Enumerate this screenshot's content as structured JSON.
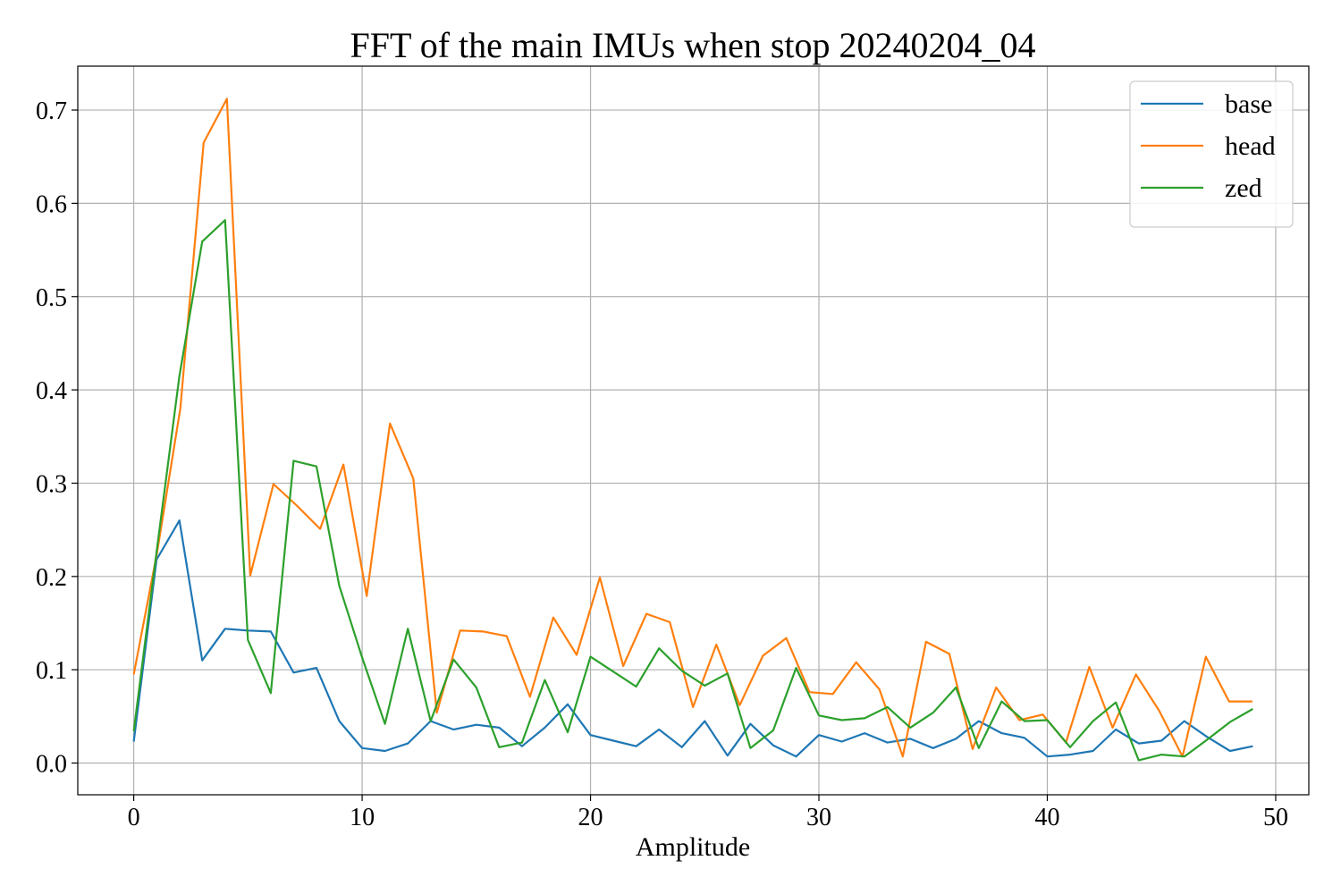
{
  "chart_data": {
    "type": "line",
    "title": "FFT of the main IMUs when stop 20240204_04",
    "xlabel": "Amplitude",
    "ylabel": "",
    "xlim": [
      -2.45,
      51.45
    ],
    "ylim": [
      -0.034,
      0.747
    ],
    "x_ticks": [
      0,
      10,
      20,
      30,
      40,
      50
    ],
    "y_ticks": [
      0.0,
      0.1,
      0.2,
      0.3,
      0.4,
      0.5,
      0.6,
      0.7
    ],
    "y_tick_labels": [
      "0.0",
      "0.1",
      "0.2",
      "0.3",
      "0.4",
      "0.5",
      "0.6",
      "0.7"
    ],
    "grid": true,
    "legend_position": "top-right",
    "series": [
      {
        "name": "base",
        "color": "#1f77b4",
        "x": [
          0,
          1,
          2,
          3,
          4,
          5,
          6,
          7,
          8,
          9,
          10,
          11,
          12,
          13,
          14,
          15,
          16,
          17,
          18,
          19,
          20,
          21,
          22,
          23,
          24,
          25,
          26,
          27,
          28,
          29,
          30,
          31,
          32,
          33,
          34,
          35,
          36,
          37,
          38,
          39,
          40,
          41,
          42,
          43,
          44,
          45,
          46,
          47,
          48,
          49
        ],
        "y": [
          0.023,
          0.218,
          0.26,
          0.11,
          0.144,
          0.142,
          0.141,
          0.097,
          0.102,
          0.045,
          0.016,
          0.013,
          0.021,
          0.045,
          0.036,
          0.041,
          0.038,
          0.018,
          0.038,
          0.063,
          0.03,
          0.024,
          0.018,
          0.036,
          0.017,
          0.045,
          0.008,
          0.042,
          0.019,
          0.007,
          0.03,
          0.023,
          0.032,
          0.022,
          0.026,
          0.016,
          0.026,
          0.045,
          0.032,
          0.027,
          0.007,
          0.009,
          0.013,
          0.036,
          0.021,
          0.024,
          0.045,
          0.028,
          0.013,
          0.018
        ]
      },
      {
        "name": "head",
        "color": "#ff7f0e",
        "x": [
          0,
          1.02,
          2.04,
          3.06,
          4.08,
          5.1,
          6.12,
          7.14,
          8.16,
          9.18,
          10.2,
          11.22,
          12.24,
          13.27,
          14.29,
          15.31,
          16.33,
          17.35,
          18.37,
          19.39,
          20.41,
          21.43,
          22.45,
          23.47,
          24.49,
          25.51,
          26.53,
          27.55,
          28.57,
          29.59,
          30.61,
          31.63,
          32.65,
          33.67,
          34.69,
          35.71,
          36.73,
          37.76,
          38.78,
          39.8,
          40.82,
          41.84,
          42.86,
          43.88,
          44.9,
          45.92,
          46.94,
          47.96,
          48.98
        ],
        "y": [
          0.095,
          0.225,
          0.38,
          0.665,
          0.712,
          0.201,
          0.299,
          0.276,
          0.251,
          0.32,
          0.179,
          0.364,
          0.305,
          0.054,
          0.142,
          0.141,
          0.136,
          0.071,
          0.156,
          0.116,
          0.199,
          0.104,
          0.16,
          0.151,
          0.06,
          0.127,
          0.062,
          0.115,
          0.134,
          0.076,
          0.074,
          0.108,
          0.079,
          0.007,
          0.13,
          0.117,
          0.015,
          0.081,
          0.046,
          0.052,
          0.022,
          0.103,
          0.038,
          0.095,
          0.056,
          0.007,
          0.114,
          0.066,
          0.066
        ]
      },
      {
        "name": "zed",
        "color": "#2ca02c",
        "x": [
          0,
          1,
          2,
          3,
          4,
          5,
          6,
          7,
          8,
          9,
          10,
          11,
          12,
          13,
          14,
          15,
          16,
          17,
          18,
          19,
          20,
          21,
          22,
          23,
          24,
          25,
          26,
          27,
          28,
          29,
          30,
          31,
          32,
          33,
          34,
          35,
          36,
          37,
          38,
          39,
          40,
          41,
          42,
          43,
          44,
          45,
          46,
          47,
          48,
          49
        ],
        "y": [
          0.034,
          0.226,
          0.415,
          0.559,
          0.582,
          0.132,
          0.075,
          0.324,
          0.318,
          0.19,
          0.113,
          0.042,
          0.144,
          0.045,
          0.111,
          0.081,
          0.017,
          0.022,
          0.089,
          0.033,
          0.114,
          0.098,
          0.082,
          0.123,
          0.099,
          0.083,
          0.096,
          0.016,
          0.035,
          0.102,
          0.051,
          0.046,
          0.048,
          0.06,
          0.038,
          0.054,
          0.081,
          0.016,
          0.066,
          0.045,
          0.046,
          0.017,
          0.045,
          0.065,
          0.003,
          0.009,
          0.007,
          0.025,
          0.044,
          0.058
        ]
      }
    ]
  }
}
